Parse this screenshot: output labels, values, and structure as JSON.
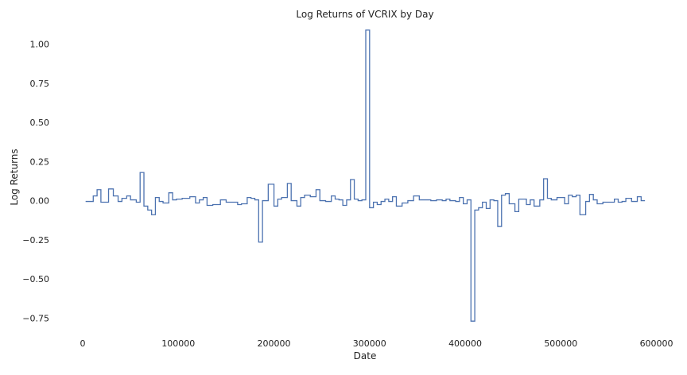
{
  "chart_data": {
    "type": "line",
    "step": true,
    "title": "Log Returns of VCRIX by Day",
    "xlabel": "Date",
    "ylabel": "Log Returns",
    "xlim": [
      -20000,
      612000
    ],
    "ylim": [
      -0.84,
      1.13
    ],
    "x_ticks": [
      0,
      100000,
      200000,
      300000,
      400000,
      500000,
      600000
    ],
    "x_tick_labels": [
      "0",
      "100000",
      "200000",
      "300000",
      "400000",
      "500000",
      "600000"
    ],
    "y_ticks": [
      1.0,
      0.75,
      0.5,
      0.25,
      0.0,
      -0.25,
      -0.5,
      -0.75
    ],
    "y_tick_labels": [
      "1.00",
      "0.75",
      "0.50",
      "0.25",
      "0.00",
      "−0.25",
      "−0.50",
      "−0.75"
    ],
    "grid": false,
    "line_color": "#4c72b0",
    "series": [
      {
        "x": [
          3000,
          11000,
          15000,
          19000,
          27000,
          32000,
          37000,
          41000,
          46000,
          50000,
          56000,
          60000,
          64000,
          68000,
          72000,
          76000,
          80000,
          84000,
          90000,
          94000,
          98000,
          104000,
          112000,
          118000,
          122000,
          126000,
          130000,
          136000,
          144000,
          150000,
          156000,
          162000,
          166000,
          172000,
          176000,
          180000,
          184000,
          188000,
          194000,
          200000,
          204000,
          208000,
          214000,
          218000,
          224000,
          228000,
          232000,
          238000,
          244000,
          248000,
          254000,
          260000,
          264000,
          268000,
          272000,
          276000,
          280000,
          284000,
          288000,
          292000,
          296000,
          300000,
          304000,
          308000,
          312000,
          316000,
          320000,
          324000,
          328000,
          334000,
          340000,
          346000,
          352000,
          358000,
          364000,
          370000,
          376000,
          380000,
          384000,
          390000,
          394000,
          398000,
          402000,
          406000,
          410000,
          414000,
          418000,
          422000,
          426000,
          430000,
          434000,
          438000,
          442000,
          446000,
          452000,
          456000,
          460000,
          464000,
          468000,
          472000,
          478000,
          482000,
          486000,
          490000,
          496000,
          500000,
          504000,
          508000,
          512000,
          516000,
          520000,
          526000,
          530000,
          534000,
          538000,
          544000,
          550000,
          556000,
          560000,
          564000,
          568000,
          574000,
          580000,
          584000
        ],
        "y": [
          -0.005,
          0.03,
          0.07,
          -0.01,
          0.075,
          0.03,
          -0.005,
          0.015,
          0.03,
          0.005,
          -0.01,
          0.18,
          -0.035,
          -0.06,
          -0.09,
          0.02,
          -0.005,
          -0.015,
          0.05,
          0.005,
          0.01,
          0.015,
          0.025,
          -0.015,
          0.005,
          0.02,
          -0.03,
          -0.025,
          0.005,
          -0.01,
          -0.01,
          -0.025,
          -0.02,
          0.02,
          0.015,
          0.005,
          -0.265,
          0.0,
          0.105,
          -0.035,
          0.01,
          0.02,
          0.11,
          0.0,
          -0.035,
          0.02,
          0.035,
          0.025,
          0.07,
          0.0,
          -0.005,
          0.03,
          0.01,
          0.005,
          -0.03,
          0.005,
          0.135,
          0.01,
          0.0,
          0.005,
          1.09,
          -0.045,
          -0.01,
          -0.025,
          -0.005,
          0.01,
          -0.005,
          0.025,
          -0.035,
          -0.015,
          0.0,
          0.03,
          0.005,
          0.005,
          0.0,
          0.005,
          0.0,
          0.01,
          0.0,
          -0.005,
          0.02,
          -0.02,
          0.005,
          -0.77,
          -0.06,
          -0.045,
          -0.01,
          -0.05,
          0.005,
          0.0,
          -0.165,
          0.035,
          0.045,
          -0.02,
          -0.07,
          0.01,
          0.01,
          -0.025,
          0.005,
          -0.035,
          0.005,
          0.14,
          0.015,
          0.005,
          0.02,
          0.02,
          -0.02,
          0.035,
          0.025,
          0.035,
          -0.09,
          -0.005,
          0.04,
          0.005,
          -0.02,
          -0.01,
          -0.01,
          0.01,
          -0.01,
          -0.005,
          0.015,
          -0.005,
          0.025,
          0.0
        ]
      }
    ]
  }
}
